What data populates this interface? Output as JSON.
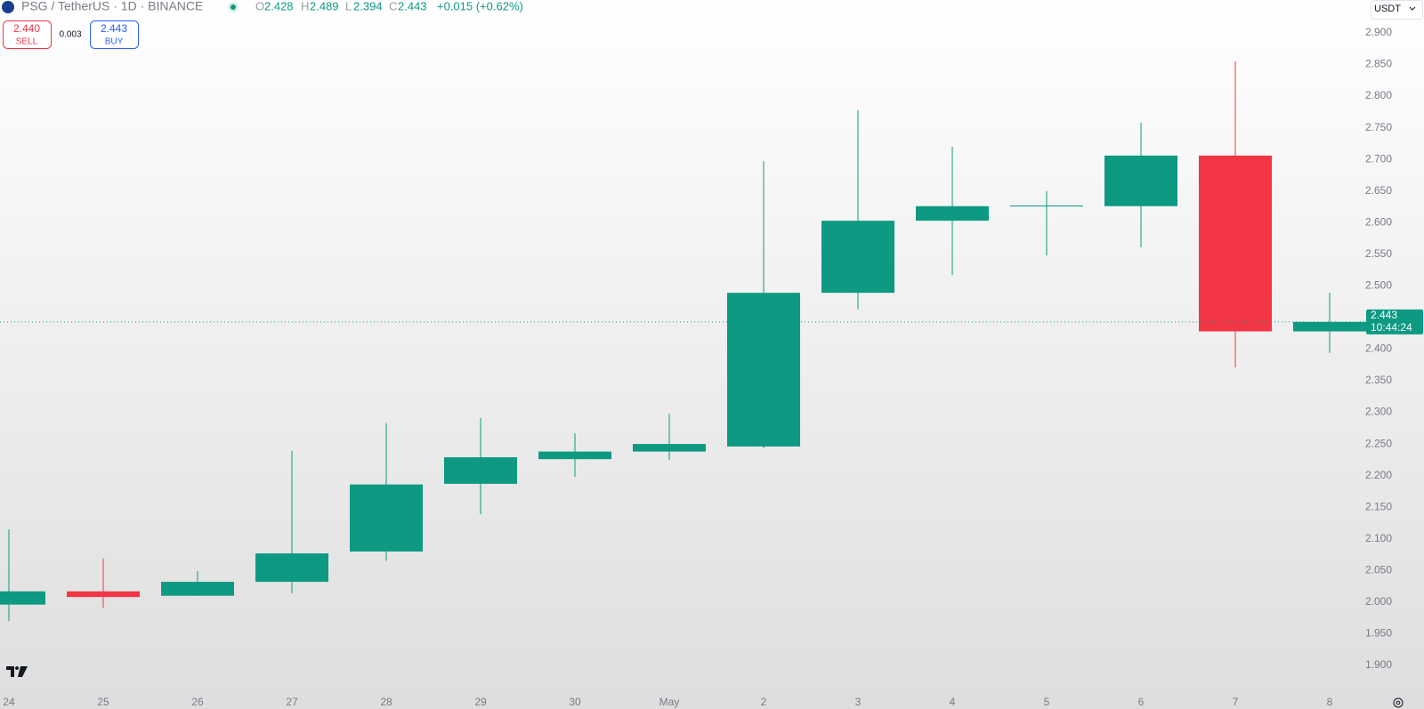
{
  "header": {
    "symbol": "PSG / TetherUS · 1D · BINANCE",
    "ohlc_labels": [
      "O",
      "H",
      "L",
      "C"
    ],
    "change": "+0.015 (+0.62%)",
    "sell_price": "2.440",
    "sell_label": "SELL",
    "spread": "0.003",
    "buy_price": "2.443",
    "buy_label": "BUY",
    "currency": "USDT",
    "countdown": "10:44:24"
  },
  "chart_data": {
    "type": "candlestick",
    "categories": [
      "24",
      "25",
      "26",
      "27",
      "28",
      "29",
      "30",
      "May",
      "2",
      "3",
      "4",
      "5",
      "6",
      "7",
      "8"
    ],
    "open": [
      1.996,
      2.017,
      2.01,
      2.032,
      2.08,
      2.187,
      2.226,
      2.238,
      2.246,
      2.489,
      2.603,
      2.626,
      2.626,
      2.706,
      2.428
    ],
    "high": [
      2.115,
      2.069,
      2.049,
      2.239,
      2.283,
      2.291,
      2.267,
      2.298,
      2.697,
      2.778,
      2.72,
      2.65,
      2.758,
      2.855,
      2.489
    ],
    "low": [
      1.97,
      1.991,
      2.01,
      2.014,
      2.065,
      2.139,
      2.198,
      2.225,
      2.243,
      2.463,
      2.517,
      2.548,
      2.561,
      2.371,
      2.394
    ],
    "close": [
      2.017,
      2.008,
      2.032,
      2.077,
      2.186,
      2.229,
      2.238,
      2.25,
      2.489,
      2.603,
      2.626,
      2.627,
      2.706,
      2.428,
      2.443
    ],
    "up_color": "#0e9a82",
    "down_color": "#f23645",
    "ylim": [
      1.883,
      2.952
    ],
    "yticks": [
      {
        "value": 1.9,
        "label": "1.900"
      },
      {
        "value": 1.95,
        "label": "1.950"
      },
      {
        "value": 2.0,
        "label": "2.000"
      },
      {
        "value": 2.05,
        "label": "2.050"
      },
      {
        "value": 2.1,
        "label": "2.100"
      },
      {
        "value": 2.15,
        "label": "2.150"
      },
      {
        "value": 2.2,
        "label": "2.200"
      },
      {
        "value": 2.25,
        "label": "2.250"
      },
      {
        "value": 2.3,
        "label": "2.300"
      },
      {
        "value": 2.35,
        "label": "2.350"
      },
      {
        "value": 2.4,
        "label": "2.400"
      },
      {
        "value": 2.45,
        "label": "2.450"
      },
      {
        "value": 2.5,
        "label": "2.500"
      },
      {
        "value": 2.55,
        "label": "2.550"
      },
      {
        "value": 2.6,
        "label": "2.600"
      },
      {
        "value": 2.65,
        "label": "2.650"
      },
      {
        "value": 2.7,
        "label": "2.700"
      },
      {
        "value": 2.75,
        "label": "2.750"
      },
      {
        "value": 2.8,
        "label": "2.800"
      },
      {
        "value": 2.85,
        "label": "2.850"
      },
      {
        "value": 2.9,
        "label": "2.900"
      }
    ],
    "grid": false
  }
}
